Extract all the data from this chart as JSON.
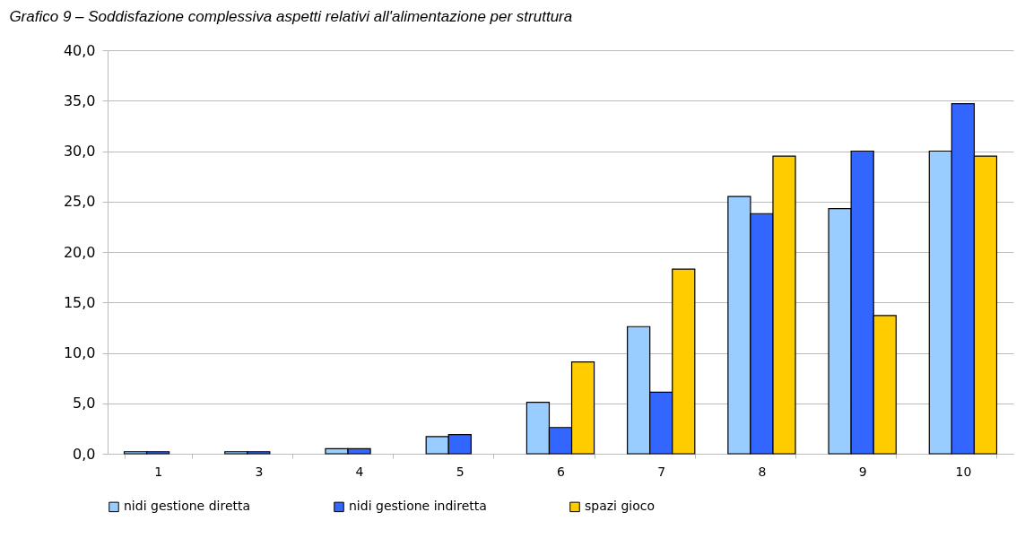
{
  "chart_data": {
    "type": "bar",
    "title": "Grafico 9 – Soddisfazione complessiva aspetti relativi all'alimentazione per struttura",
    "categories": [
      "1",
      "3",
      "4",
      "5",
      "6",
      "7",
      "8",
      "9",
      "10"
    ],
    "series": [
      {
        "name": "nidi gestione diretta",
        "color": "#99ccff",
        "values": [
          0.2,
          0.2,
          0.5,
          1.7,
          5.1,
          12.6,
          25.5,
          24.3,
          30.0
        ]
      },
      {
        "name": "nidi gestione indiretta",
        "color": "#3366ff",
        "values": [
          0.2,
          0.2,
          0.5,
          1.9,
          2.6,
          6.1,
          23.8,
          30.0,
          34.7
        ]
      },
      {
        "name": "spazi gioco",
        "color": "#ffcc00",
        "values": [
          null,
          null,
          null,
          null,
          9.1,
          18.3,
          29.5,
          13.7,
          29.5
        ]
      }
    ],
    "ylim": [
      0,
      40
    ],
    "yticks": [
      {
        "value": 0,
        "label": "0,0"
      },
      {
        "value": 5,
        "label": "5,0"
      },
      {
        "value": 10,
        "label": "10,0"
      },
      {
        "value": 15,
        "label": "15,0"
      },
      {
        "value": 20,
        "label": "20,0"
      },
      {
        "value": 25,
        "label": "25,0"
      },
      {
        "value": 30,
        "label": "30,0"
      },
      {
        "value": 35,
        "label": "35,0"
      },
      {
        "value": 40,
        "label": "40,0"
      }
    ],
    "grid": "y",
    "legend": "bottom"
  }
}
